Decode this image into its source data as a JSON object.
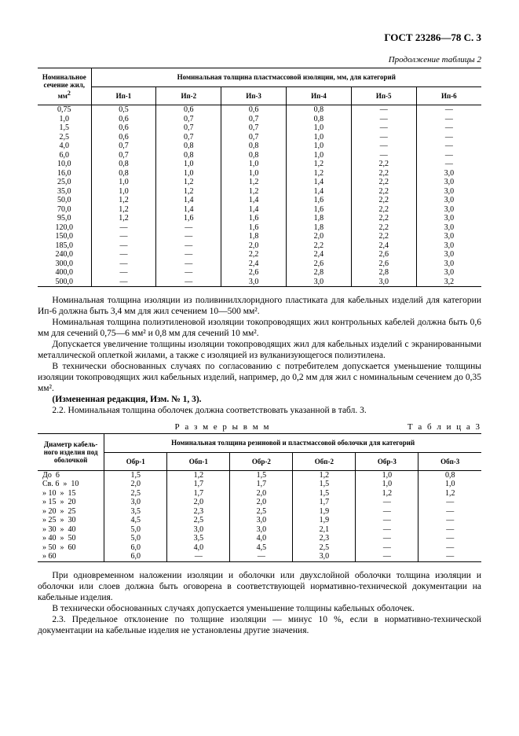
{
  "header": "ГОСТ 23286—78 С. 3",
  "continuation": "Продолжение таблицы 2",
  "table2": {
    "corner": "Номинальное\nсечение жил,\nмм",
    "cornerSup": "2",
    "groupHeader": "Номинальная толщина пластмассовой изоляции, мм, для категорий",
    "cols": [
      "Ип-1",
      "Ип-2",
      "Ип-3",
      "Ип-4",
      "Ип-5",
      "Ип-6"
    ],
    "rows": [
      [
        "0,75",
        "0,5",
        "0,6",
        "0,6",
        "0,8",
        "—",
        "—"
      ],
      [
        "1,0",
        "0,6",
        "0,7",
        "0,7",
        "0,8",
        "—",
        "—"
      ],
      [
        "1,5",
        "0,6",
        "0,7",
        "0,7",
        "1,0",
        "—",
        "—"
      ],
      [
        "2,5",
        "0,6",
        "0,7",
        "0,7",
        "1,0",
        "—",
        "—"
      ],
      [
        "4,0",
        "0,7",
        "0,8",
        "0,8",
        "1,0",
        "—",
        "—"
      ],
      [
        "6,0",
        "0,7",
        "0,8",
        "0,8",
        "1,0",
        "—",
        "—"
      ],
      [
        "10,0",
        "0,8",
        "1,0",
        "1,0",
        "1,2",
        "2,2",
        "—"
      ],
      [
        "16,0",
        "0,8",
        "1,0",
        "1,0",
        "1,2",
        "2,2",
        "3,0"
      ],
      [
        "25,0",
        "1,0",
        "1,2",
        "1,2",
        "1,4",
        "2,2",
        "3,0"
      ],
      [
        "35,0",
        "1,0",
        "1,2",
        "1,2",
        "1,4",
        "2,2",
        "3,0"
      ],
      [
        "50,0",
        "1,2",
        "1,4",
        "1,4",
        "1,6",
        "2,2",
        "3,0"
      ],
      [
        "70,0",
        "1,2",
        "1,4",
        "1,4",
        "1,6",
        "2,2",
        "3,0"
      ],
      [
        "95,0",
        "1,2",
        "1,6",
        "1,6",
        "1,8",
        "2,2",
        "3,0"
      ],
      [
        "120,0",
        "—",
        "—",
        "1,6",
        "1,8",
        "2,2",
        "3,0"
      ],
      [
        "150,0",
        "—",
        "—",
        "1,8",
        "2,0",
        "2,2",
        "3,0"
      ],
      [
        "185,0",
        "—",
        "—",
        "2,0",
        "2,2",
        "2,4",
        "3,0"
      ],
      [
        "240,0",
        "—",
        "—",
        "2,2",
        "2,4",
        "2,6",
        "3,0"
      ],
      [
        "300,0",
        "—",
        "—",
        "2,4",
        "2,6",
        "2,6",
        "3,0"
      ],
      [
        "400,0",
        "—",
        "—",
        "2,6",
        "2,8",
        "2,8",
        "3,0"
      ],
      [
        "500,0",
        "—",
        "—",
        "3,0",
        "3,0",
        "3,0",
        "3,2"
      ]
    ]
  },
  "p1": "Номинальная толщина изоляции из поливинилхлоридного пластиката для кабельных изделий для категории Ип-6 должна быть 3,4 мм для жил сечением 10—500 мм².",
  "p2": "Номинальная толщина полиэтиленовой изоляции токопроводящих жил контрольных кабелей должна быть 0,6 мм для сечений 0,75—6 мм² и 0,8 мм для сечений 10 мм².",
  "p3": "Допускается увеличение толщины изоляции токопроводящих жил для кабельных изделий с экранированными металлической оплеткой жилами, а также с изоляцией из вулканизующегося полиэтилена.",
  "p4": "В технически обоснованных случаях по согласованию с потребителем допускается уменьшение толщины изоляции токопроводящих жил кабельных изделий, например, до 0,2 мм для жил с номинальным сечением до 0,35 мм².",
  "p5": "(Измененная редакция, Изм. № 1, 3).",
  "p6": "2.2. Номинальная толщина оболочек должна соответствовать указанной в табл. 3.",
  "dimTitle": "Р а з м е р ы   в   м м",
  "tableLabel": "Т а б л и ц а  3",
  "table3": {
    "corner": "Диаметр кабель-\nного изделия\nпод оболочкой",
    "groupHeader": "Номинальная толщина резиновой и пластмассовой оболочки для категорий",
    "cols": [
      "Обр-1",
      "Обп-1",
      "Обр-2",
      "Обп-2",
      "Обр-3",
      "Обп-3"
    ],
    "rows": [
      [
        "До  6",
        "1,5",
        "1,2",
        "1,5",
        "1,2",
        "1,0",
        "0,8"
      ],
      [
        "Св. 6  »  10",
        "2,0",
        "1,7",
        "1,7",
        "1,5",
        "1,0",
        "1,0"
      ],
      [
        "» 10  »  15",
        "2,5",
        "1,7",
        "2,0",
        "1,5",
        "1,2",
        "1,2"
      ],
      [
        "» 15  »  20",
        "3,0",
        "2,0",
        "2,0",
        "1,7",
        "—",
        "—"
      ],
      [
        "» 20  »  25",
        "3,5",
        "2,3",
        "2,5",
        "1,9",
        "—",
        "—"
      ],
      [
        "» 25  »  30",
        "4,5",
        "2,5",
        "3,0",
        "1,9",
        "—",
        "—"
      ],
      [
        "» 30  »  40",
        "5,0",
        "3,0",
        "3,0",
        "2,1",
        "—",
        "—"
      ],
      [
        "» 40  »  50",
        "5,0",
        "3,5",
        "4,0",
        "2,3",
        "—",
        "—"
      ],
      [
        "» 50  »  60",
        "6,0",
        "4,0",
        "4,5",
        "2,5",
        "—",
        "—"
      ],
      [
        "» 60",
        "6,0",
        "—",
        "—",
        "3,0",
        "—",
        "—"
      ]
    ]
  },
  "p7": "При одновременном наложении изоляции и оболочки или двухслойной оболочки толщина изоляции и оболочки или слоев должна быть оговорена в соответствующей нормативно-технической документации на кабельные изделия.",
  "p8": "В технически обоснованных случаях допускается уменьшение толщины кабельных оболочек.",
  "p9": "2.3. Предельное отклонение по толщине изоляции — минус 10 %, если в нормативно-технической документации на кабельные изделия не установлены другие значения."
}
